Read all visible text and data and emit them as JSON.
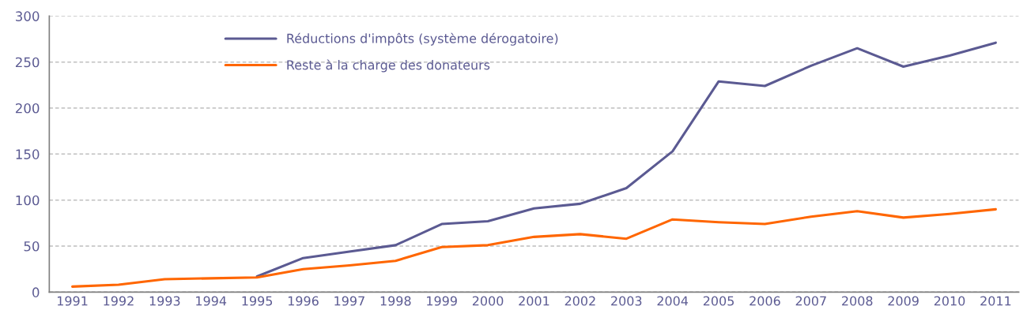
{
  "chart_data": {
    "type": "line",
    "categories": [
      "1991",
      "1992",
      "1993",
      "1994",
      "1995",
      "1996",
      "1997",
      "1998",
      "1999",
      "2000",
      "2001",
      "2002",
      "2003",
      "2004",
      "2005",
      "2006",
      "2007",
      "2008",
      "2009",
      "2010",
      "2011"
    ],
    "series": [
      {
        "name": "Réductions d'impôts (système dérogatoire)",
        "color": "#5b5a92",
        "values": [
          null,
          null,
          null,
          null,
          17,
          37,
          44,
          51,
          74,
          77,
          91,
          96,
          113,
          153,
          229,
          224,
          246,
          265,
          245,
          257,
          271
        ]
      },
      {
        "name": "Reste à la charge des donateurs",
        "color": "#ff6600",
        "values": [
          6,
          8,
          14,
          15,
          16,
          25,
          29,
          34,
          49,
          51,
          60,
          63,
          58,
          79,
          76,
          74,
          82,
          88,
          81,
          85,
          90
        ]
      }
    ],
    "ylim": [
      0,
      300
    ],
    "yticks": [
      0,
      50,
      100,
      150,
      200,
      250,
      300
    ],
    "grid": "y",
    "legend": "top left",
    "marker": "none",
    "line_style": "solid"
  }
}
